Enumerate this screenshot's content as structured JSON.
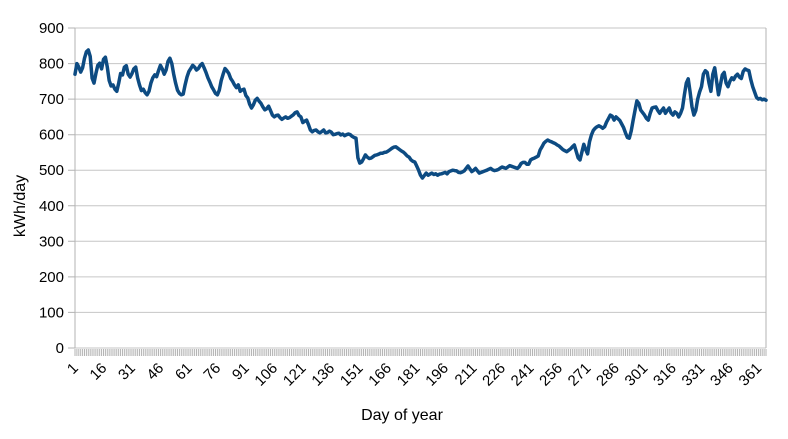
{
  "colors": {
    "series": "#0d4b82",
    "gridline": "#c6c6c6",
    "axis": "#b3b3b3",
    "text": "#000000",
    "background": "#ffffff"
  },
  "chart_data": {
    "type": "line",
    "title": "",
    "xlabel": "Day of year",
    "ylabel": "kWh/day",
    "xlim": [
      1,
      365
    ],
    "ylim": [
      0,
      900
    ],
    "y_ticks": [
      0,
      100,
      200,
      300,
      400,
      500,
      600,
      700,
      800,
      900
    ],
    "x_ticks": [
      1,
      16,
      31,
      46,
      61,
      76,
      91,
      106,
      121,
      136,
      151,
      166,
      181,
      196,
      211,
      226,
      241,
      256,
      271,
      286,
      301,
      316,
      331,
      346,
      361
    ],
    "minor_ticks_every_day": true,
    "grid": "horizontal",
    "legend": "none",
    "series": [
      {
        "name": "kWh/day",
        "color": "#0d4b82",
        "x_start": 1,
        "x_step": 1,
        "values": [
          770,
          800,
          790,
          776,
          788,
          815,
          833,
          838,
          820,
          759,
          745,
          772,
          795,
          801,
          785,
          812,
          818,
          790,
          752,
          737,
          740,
          728,
          722,
          745,
          772,
          768,
          790,
          794,
          770,
          762,
          772,
          785,
          790,
          760,
          740,
          724,
          728,
          718,
          712,
          722,
          745,
          760,
          768,
          763,
          780,
          795,
          785,
          770,
          782,
          806,
          815,
          800,
          770,
          745,
          725,
          716,
          712,
          714,
          740,
          762,
          778,
          786,
          795,
          790,
          782,
          786,
          795,
          800,
          788,
          775,
          760,
          748,
          735,
          726,
          716,
          712,
          725,
          752,
          770,
          786,
          780,
          772,
          758,
          750,
          740,
          732,
          740,
          722,
          726,
          728,
          710,
          703,
          686,
          675,
          684,
          697,
          702,
          694,
          688,
          678,
          670,
          673,
          680,
          668,
          655,
          650,
          654,
          655,
          648,
          643,
          647,
          650,
          646,
          648,
          652,
          656,
          662,
          664,
          654,
          650,
          634,
          638,
          641,
          628,
          613,
          608,
          612,
          613,
          608,
          605,
          609,
          613,
          605,
          606,
          610,
          607,
          600,
          601,
          603,
          604,
          599,
          602,
          597,
          600,
          602,
          600,
          595,
          592,
          590,
          535,
          520,
          523,
          532,
          543,
          537,
          533,
          534,
          538,
          542,
          543,
          545,
          548,
          548,
          550,
          551,
          554,
          558,
          562,
          565,
          566,
          562,
          558,
          554,
          551,
          546,
          540,
          537,
          529,
          525,
          523,
          512,
          500,
          486,
          478,
          485,
          492,
          486,
          489,
          492,
          488,
          490,
          486,
          489,
          490,
          492,
          494,
          490,
          496,
          498,
          500,
          499,
          498,
          494,
          493,
          495,
          498,
          505,
          512,
          504,
          496,
          500,
          505,
          498,
          492,
          494,
          496,
          498,
          500,
          503,
          505,
          501,
          499,
          500,
          502,
          506,
          509,
          507,
          505,
          509,
          513,
          511,
          509,
          507,
          505,
          510,
          519,
          522,
          522,
          517,
          517,
          529,
          532,
          534,
          537,
          540,
          557,
          566,
          576,
          581,
          585,
          582,
          580,
          577,
          575,
          571,
          568,
          563,
          558,
          555,
          552,
          556,
          560,
          566,
          571,
          553,
          535,
          529,
          551,
          573,
          558,
          546,
          580,
          599,
          612,
          618,
          622,
          625,
          622,
          618,
          622,
          635,
          645,
          655,
          652,
          641,
          650,
          645,
          640,
          630,
          620,
          605,
          592,
          590,
          610,
          640,
          668,
          695,
          688,
          669,
          662,
          655,
          646,
          641,
          660,
          675,
          677,
          678,
          668,
          660,
          668,
          675,
          660,
          668,
          675,
          661,
          655,
          664,
          660,
          650,
          660,
          675,
          712,
          745,
          757,
          720,
          678,
          655,
          668,
          700,
          720,
          735,
          770,
          780,
          775,
          745,
          722,
          770,
          788,
          750,
          712,
          740,
          768,
          775,
          745,
          735,
          750,
          760,
          755,
          765,
          770,
          762,
          758,
          778,
          785,
          782,
          780,
          755,
          735,
          720,
          705,
          700,
          702,
          698,
          700,
          697
        ]
      }
    ]
  }
}
